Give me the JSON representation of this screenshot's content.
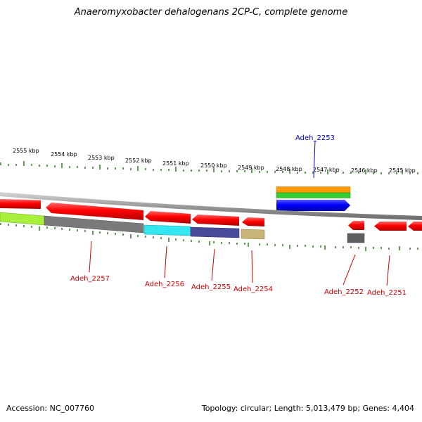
{
  "title": "Anaeromyxobacter dehalogenans 2CP-C, complete genome",
  "scale_labels": [
    "2555 kbp",
    "2554 kbp",
    "2553 kbp",
    "2552 kbp",
    "2551 kbp",
    "2550 kbp",
    "2549 kbp",
    "2548 kbp",
    "2547 kbp",
    "2546 kbp",
    "2545 kbp"
  ],
  "genes": [
    {
      "id": "Adeh_2257",
      "strand": "reverse",
      "color": "#ff0000"
    },
    {
      "id": "Adeh_2256",
      "strand": "reverse",
      "color": "#ff0000"
    },
    {
      "id": "Adeh_2255",
      "strand": "reverse",
      "color": "#ff0000"
    },
    {
      "id": "Adeh_2254",
      "strand": "reverse",
      "color": "#ff0000"
    },
    {
      "id": "Adeh_2253",
      "strand": "forward",
      "color": "#0000ff"
    },
    {
      "id": "Adeh_2252",
      "strand": "reverse",
      "color": "#ff0000"
    },
    {
      "id": "Adeh_2251",
      "strand": "reverse",
      "color": "#ff0000"
    }
  ],
  "colors": {
    "reverse_gene": "#ff0000",
    "forward_gene": "#0000ff",
    "backbone": "#8c8c8c",
    "tick": "#2e7d1e"
  },
  "footer": {
    "accession": "Accession: NC_007760",
    "summary": "Topology: circular; Length: 5,013,479 bp; Genes: 4,404"
  }
}
